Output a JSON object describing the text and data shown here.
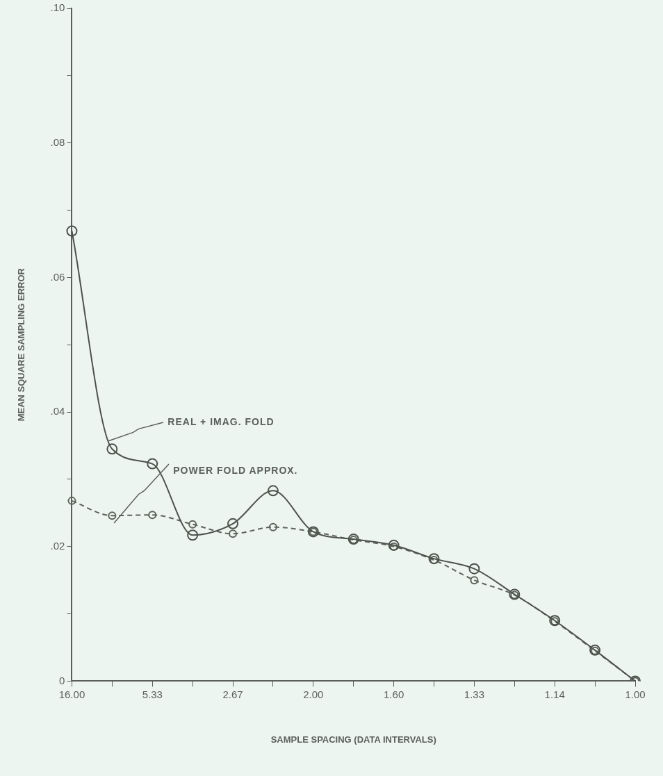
{
  "chart_data": {
    "type": "line",
    "xlabel": "SAMPLE SPACING (DATA INTERVALS)",
    "ylabel": "MEAN SQUARE SAMPLING ERROR",
    "categories": [
      "16.00",
      null,
      "5.33",
      null,
      "2.67",
      null,
      "2.00",
      null,
      "1.60",
      null,
      "1.33",
      null,
      "1.14",
      null,
      "1.00"
    ],
    "series": [
      {
        "name": "REAL + IMAG. FOLD",
        "color": "#4d524c",
        "line_style": "solid",
        "values": [
          0.0669,
          0.0345,
          0.0323,
          0.0217,
          0.0234,
          0.0283,
          0.0222,
          0.0211,
          0.0202,
          0.0182,
          0.0167,
          0.0129,
          0.009,
          0.0046,
          0.0
        ]
      },
      {
        "name": "POWER FOLD APPROX.",
        "color": "#5d625b",
        "line_style": "dashed",
        "values": [
          0.0268,
          0.0246,
          0.0247,
          0.0233,
          0.0219,
          0.0229,
          0.0222,
          0.021,
          0.02,
          0.018,
          0.015,
          0.0128,
          0.0089,
          0.0045,
          0.0
        ]
      }
    ],
    "ylim": [
      0,
      0.1
    ],
    "yticks": [
      0,
      {
        "value": 0.01,
        "label": null
      },
      {
        "value": 0.02,
        "label": ".02"
      },
      {
        "value": 0.03,
        "label": null
      },
      {
        "value": 0.04,
        "label": ".04"
      },
      {
        "value": 0.05,
        "label": null
      },
      {
        "value": 0.06,
        "label": ".06"
      },
      {
        "value": 0.07,
        "label": null
      },
      {
        "value": 0.08,
        "label": ".08"
      },
      {
        "value": 0.09,
        "label": null
      },
      {
        "value": 0.1,
        "label": ".10"
      }
    ],
    "marker": "circle",
    "legend": false,
    "grid": false
  }
}
